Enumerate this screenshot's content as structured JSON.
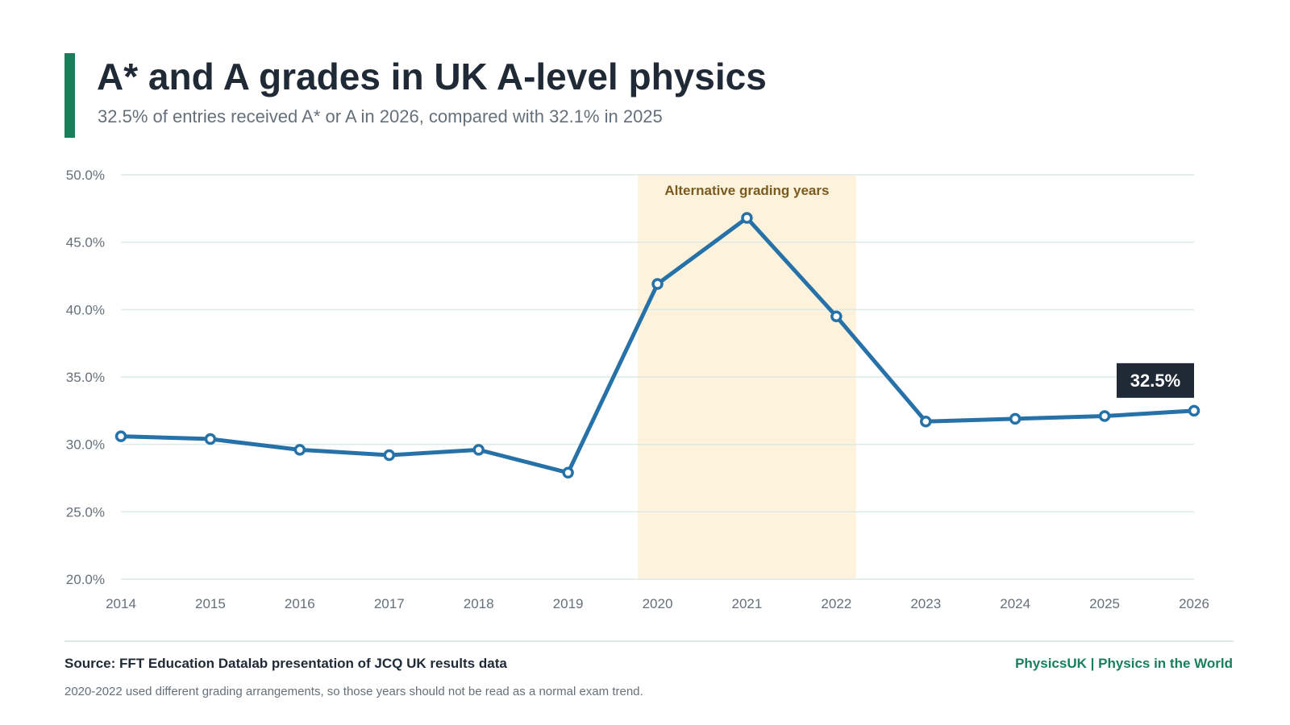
{
  "header": {
    "title": "A* and A grades in UK A-level physics",
    "subtitle": "32.5% of entries received A* or A in 2026, compared with 32.1% in 2025"
  },
  "footer": {
    "source": "Source: FFT Education Datalab presentation of JCQ UK results data",
    "brand": "PhysicsUK | Physics in the World",
    "note": "2020-2022 used different grading arrangements, so those years should not be read as a normal exam trend."
  },
  "colors": {
    "accent": "#17805a",
    "line": "#2672a8",
    "highlight_band": "#fdf3dc",
    "highlight_text": "#7a5a1e",
    "callout_bg": "#1f2a36",
    "grid": "#dde9e6",
    "tick_text": "#66707a"
  },
  "chart_data": {
    "type": "line",
    "x": [
      "2014",
      "2015",
      "2016",
      "2017",
      "2018",
      "2019",
      "2020",
      "2021",
      "2022",
      "2023",
      "2024",
      "2025",
      "2026"
    ],
    "series": [
      {
        "values": [
          30.6,
          30.4,
          29.6,
          29.2,
          29.6,
          27.9,
          41.9,
          46.8,
          39.5,
          31.7,
          31.9,
          32.1,
          32.5
        ]
      }
    ],
    "ylim": [
      20,
      50
    ],
    "yticks": [
      "20.0%",
      "25.0%",
      "30.0%",
      "35.0%",
      "40.0%",
      "45.0%",
      "50.0%"
    ],
    "ytick_values": [
      20,
      25,
      30,
      35,
      40,
      45,
      50
    ],
    "grid": true,
    "shaded_region": {
      "from": "2020",
      "to": "2022",
      "label": "Alternative grading years"
    },
    "callout": {
      "x": "2026",
      "label": "32.5%"
    }
  }
}
